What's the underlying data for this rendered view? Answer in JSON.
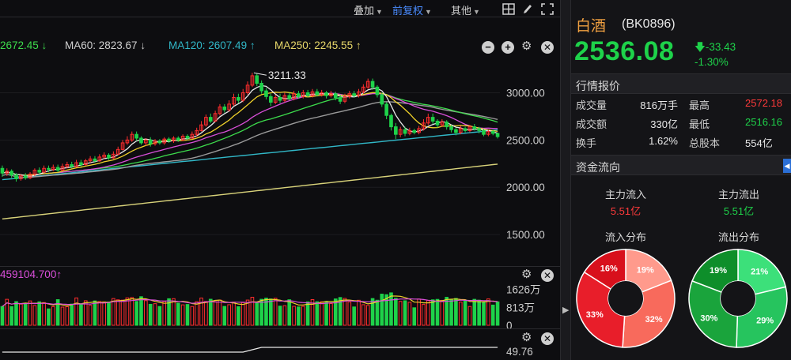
{
  "toolbar": {
    "overlay_label": "叠加",
    "adjust_label": "前复权",
    "other_label": "其他"
  },
  "ma_bar": {
    "ma_partial": "2672.45 ↓",
    "ma60": "MA60: 2823.67 ↓",
    "ma120": "MA120: 2607.49 ↑",
    "ma250": "MA250: 2245.55 ↑"
  },
  "colors": {
    "up": "#ff2d2d",
    "down": "#1ed24a",
    "ma5": "#e8e8e8",
    "ma10": "#f0d22a",
    "ma20": "#d94fd9",
    "ma30": "#3ddc4c",
    "ma60": "#9a9a9a",
    "ma120": "#31b8c8",
    "ma250": "#d8d27a",
    "accent_blue": "#2b6fd6"
  },
  "price_chart": {
    "y_ticks": [
      "3000.00",
      "2500.00",
      "2000.00",
      "1500.00"
    ],
    "y_tick_values": [
      3000,
      2500,
      2000,
      1500
    ],
    "y_range": [
      1200,
      3380
    ],
    "high_marker": "3211.33"
  },
  "volume_chart": {
    "header": "459104.700↑",
    "y_ticks": [
      "1626万",
      "813万",
      "0"
    ],
    "y_tick_values": [
      1626,
      813,
      0
    ],
    "y_max": 1930
  },
  "indicator_chart": {
    "tick": "49.76"
  },
  "chart_data": {
    "type": "candlestick",
    "candles": [
      {
        "o": 2200,
        "c": 2150,
        "h": 2230,
        "l": 2110
      },
      {
        "o": 2150,
        "c": 2170,
        "h": 2200,
        "l": 2120
      },
      {
        "o": 2170,
        "c": 2130,
        "h": 2190,
        "l": 2100
      },
      {
        "o": 2130,
        "c": 2090,
        "h": 2150,
        "l": 2060
      },
      {
        "o": 2090,
        "c": 2120,
        "h": 2140,
        "l": 2070
      },
      {
        "o": 2120,
        "c": 2100,
        "h": 2150,
        "l": 2080
      },
      {
        "o": 2100,
        "c": 2140,
        "h": 2160,
        "l": 2085
      },
      {
        "o": 2140,
        "c": 2180,
        "h": 2200,
        "l": 2120
      },
      {
        "o": 2180,
        "c": 2160,
        "h": 2210,
        "l": 2140
      },
      {
        "o": 2160,
        "c": 2200,
        "h": 2230,
        "l": 2150
      },
      {
        "o": 2200,
        "c": 2190,
        "h": 2230,
        "l": 2160
      },
      {
        "o": 2190,
        "c": 2210,
        "h": 2240,
        "l": 2170
      },
      {
        "o": 2210,
        "c": 2180,
        "h": 2240,
        "l": 2160
      },
      {
        "o": 2180,
        "c": 2220,
        "h": 2250,
        "l": 2170
      },
      {
        "o": 2220,
        "c": 2240,
        "h": 2270,
        "l": 2200
      },
      {
        "o": 2240,
        "c": 2220,
        "h": 2270,
        "l": 2200
      },
      {
        "o": 2220,
        "c": 2260,
        "h": 2290,
        "l": 2210
      },
      {
        "o": 2260,
        "c": 2240,
        "h": 2290,
        "l": 2220
      },
      {
        "o": 2240,
        "c": 2280,
        "h": 2300,
        "l": 2230
      },
      {
        "o": 2280,
        "c": 2300,
        "h": 2330,
        "l": 2260
      },
      {
        "o": 2300,
        "c": 2280,
        "h": 2330,
        "l": 2260
      },
      {
        "o": 2280,
        "c": 2320,
        "h": 2350,
        "l": 2270
      },
      {
        "o": 2320,
        "c": 2340,
        "h": 2370,
        "l": 2300
      },
      {
        "o": 2340,
        "c": 2310,
        "h": 2360,
        "l": 2290
      },
      {
        "o": 2310,
        "c": 2350,
        "h": 2380,
        "l": 2300
      },
      {
        "o": 2350,
        "c": 2400,
        "h": 2430,
        "l": 2340
      },
      {
        "o": 2400,
        "c": 2470,
        "h": 2500,
        "l": 2390
      },
      {
        "o": 2470,
        "c": 2500,
        "h": 2540,
        "l": 2450
      },
      {
        "o": 2500,
        "c": 2560,
        "h": 2590,
        "l": 2480
      },
      {
        "o": 2560,
        "c": 2520,
        "h": 2590,
        "l": 2490
      },
      {
        "o": 2520,
        "c": 2470,
        "h": 2540,
        "l": 2450
      },
      {
        "o": 2470,
        "c": 2500,
        "h": 2520,
        "l": 2440
      },
      {
        "o": 2500,
        "c": 2460,
        "h": 2530,
        "l": 2430
      },
      {
        "o": 2460,
        "c": 2490,
        "h": 2510,
        "l": 2440
      },
      {
        "o": 2490,
        "c": 2470,
        "h": 2510,
        "l": 2450
      },
      {
        "o": 2470,
        "c": 2510,
        "h": 2530,
        "l": 2450
      },
      {
        "o": 2510,
        "c": 2490,
        "h": 2530,
        "l": 2470
      },
      {
        "o": 2490,
        "c": 2520,
        "h": 2540,
        "l": 2470
      },
      {
        "o": 2520,
        "c": 2500,
        "h": 2540,
        "l": 2480
      },
      {
        "o": 2500,
        "c": 2540,
        "h": 2560,
        "l": 2490
      },
      {
        "o": 2540,
        "c": 2520,
        "h": 2560,
        "l": 2500
      },
      {
        "o": 2520,
        "c": 2560,
        "h": 2590,
        "l": 2510
      },
      {
        "o": 2560,
        "c": 2600,
        "h": 2630,
        "l": 2540
      },
      {
        "o": 2600,
        "c": 2660,
        "h": 2700,
        "l": 2590
      },
      {
        "o": 2660,
        "c": 2740,
        "h": 2770,
        "l": 2640
      },
      {
        "o": 2740,
        "c": 2700,
        "h": 2780,
        "l": 2680
      },
      {
        "o": 2700,
        "c": 2780,
        "h": 2810,
        "l": 2690
      },
      {
        "o": 2780,
        "c": 2850,
        "h": 2880,
        "l": 2760
      },
      {
        "o": 2850,
        "c": 2820,
        "h": 2880,
        "l": 2790
      },
      {
        "o": 2820,
        "c": 2880,
        "h": 2920,
        "l": 2800
      },
      {
        "o": 2880,
        "c": 2950,
        "h": 2990,
        "l": 2860
      },
      {
        "o": 2950,
        "c": 2920,
        "h": 2990,
        "l": 2890
      },
      {
        "o": 2920,
        "c": 3000,
        "h": 3040,
        "l": 2900
      },
      {
        "o": 3000,
        "c": 3080,
        "h": 3120,
        "l": 2980
      },
      {
        "o": 3080,
        "c": 3180,
        "h": 3211,
        "l": 3060
      },
      {
        "o": 3180,
        "c": 3100,
        "h": 3200,
        "l": 3070
      },
      {
        "o": 3100,
        "c": 3020,
        "h": 3130,
        "l": 2990
      },
      {
        "o": 3020,
        "c": 2960,
        "h": 3050,
        "l": 2930
      },
      {
        "o": 2960,
        "c": 2900,
        "h": 2990,
        "l": 2860
      },
      {
        "o": 2900,
        "c": 2950,
        "h": 2980,
        "l": 2880
      },
      {
        "o": 2950,
        "c": 2920,
        "h": 2990,
        "l": 2890
      },
      {
        "o": 2920,
        "c": 2970,
        "h": 3000,
        "l": 2900
      },
      {
        "o": 2970,
        "c": 2940,
        "h": 3000,
        "l": 2920
      },
      {
        "o": 2940,
        "c": 2990,
        "h": 3020,
        "l": 2920
      },
      {
        "o": 2990,
        "c": 2960,
        "h": 3020,
        "l": 2940
      },
      {
        "o": 2960,
        "c": 3000,
        "h": 3030,
        "l": 2940
      },
      {
        "o": 3000,
        "c": 2970,
        "h": 3030,
        "l": 2950
      },
      {
        "o": 2970,
        "c": 3010,
        "h": 3040,
        "l": 2950
      },
      {
        "o": 3010,
        "c": 2980,
        "h": 3040,
        "l": 2960
      },
      {
        "o": 2980,
        "c": 3000,
        "h": 3030,
        "l": 2960
      },
      {
        "o": 3000,
        "c": 2970,
        "h": 3020,
        "l": 2940
      },
      {
        "o": 2970,
        "c": 2990,
        "h": 3020,
        "l": 2950
      },
      {
        "o": 2990,
        "c": 2950,
        "h": 3010,
        "l": 2920
      },
      {
        "o": 2950,
        "c": 2910,
        "h": 2980,
        "l": 2880
      },
      {
        "o": 2910,
        "c": 2960,
        "h": 2990,
        "l": 2890
      },
      {
        "o": 2960,
        "c": 2990,
        "h": 3020,
        "l": 2940
      },
      {
        "o": 2990,
        "c": 2970,
        "h": 3020,
        "l": 2950
      },
      {
        "o": 2970,
        "c": 3010,
        "h": 3040,
        "l": 2950
      },
      {
        "o": 3010,
        "c": 3060,
        "h": 3090,
        "l": 2990
      },
      {
        "o": 3060,
        "c": 3120,
        "h": 3150,
        "l": 3040
      },
      {
        "o": 3120,
        "c": 3060,
        "h": 3150,
        "l": 3030
      },
      {
        "o": 3060,
        "c": 2980,
        "h": 3080,
        "l": 2950
      },
      {
        "o": 2980,
        "c": 2880,
        "h": 3000,
        "l": 2850
      },
      {
        "o": 2880,
        "c": 2760,
        "h": 2900,
        "l": 2720
      },
      {
        "o": 2760,
        "c": 2640,
        "h": 2780,
        "l": 2600
      },
      {
        "o": 2640,
        "c": 2560,
        "h": 2680,
        "l": 2510
      },
      {
        "o": 2560,
        "c": 2610,
        "h": 2640,
        "l": 2530
      },
      {
        "o": 2610,
        "c": 2570,
        "h": 2640,
        "l": 2540
      },
      {
        "o": 2570,
        "c": 2600,
        "h": 2630,
        "l": 2550
      },
      {
        "o": 2600,
        "c": 2580,
        "h": 2620,
        "l": 2560
      },
      {
        "o": 2580,
        "c": 2620,
        "h": 2650,
        "l": 2560
      },
      {
        "o": 2620,
        "c": 2680,
        "h": 2720,
        "l": 2600
      },
      {
        "o": 2680,
        "c": 2740,
        "h": 2780,
        "l": 2660
      },
      {
        "o": 2740,
        "c": 2700,
        "h": 2780,
        "l": 2670
      },
      {
        "o": 2700,
        "c": 2660,
        "h": 2720,
        "l": 2630
      },
      {
        "o": 2660,
        "c": 2690,
        "h": 2720,
        "l": 2640
      },
      {
        "o": 2690,
        "c": 2640,
        "h": 2710,
        "l": 2610
      },
      {
        "o": 2640,
        "c": 2610,
        "h": 2660,
        "l": 2580
      },
      {
        "o": 2610,
        "c": 2580,
        "h": 2630,
        "l": 2550
      },
      {
        "o": 2580,
        "c": 2620,
        "h": 2650,
        "l": 2560
      },
      {
        "o": 2620,
        "c": 2600,
        "h": 2640,
        "l": 2580
      },
      {
        "o": 2600,
        "c": 2640,
        "h": 2660,
        "l": 2580
      },
      {
        "o": 2640,
        "c": 2620,
        "h": 2670,
        "l": 2600
      },
      {
        "o": 2620,
        "c": 2600,
        "h": 2640,
        "l": 2570
      },
      {
        "o": 2600,
        "c": 2560,
        "h": 2620,
        "l": 2540
      },
      {
        "o": 2560,
        "c": 2590,
        "h": 2610,
        "l": 2540
      },
      {
        "o": 2590,
        "c": 2570,
        "h": 2610,
        "l": 2550
      },
      {
        "o": 2570,
        "c": 2536,
        "h": 2572,
        "l": 2516
      }
    ],
    "ma_lines": {
      "ma250": [
        1665,
        2245
      ],
      "ma120": [
        2080,
        2607
      ],
      "ma60": [
        2130,
        2824
      ]
    }
  },
  "info": {
    "name": "白酒",
    "code": "(BK0896)",
    "price": "2536.08",
    "change_abs": "-33.43",
    "change_pct": "-1.30%",
    "quote_header": "行情报价",
    "rows": [
      {
        "k1": "成交量",
        "v1": "816万手",
        "k2": "最高",
        "v2": "2572.18",
        "v2_color": "#ff3a3a"
      },
      {
        "k1": "成交额",
        "v1": "330亿",
        "k2": "最低",
        "v2": "2516.16",
        "v2_color": "#1ed24a"
      },
      {
        "k1": "换手",
        "v1": "1.62%",
        "k2": "总股本",
        "v2": "554亿",
        "v2_color": "#e8e8e8"
      }
    ],
    "flow_header": "资金流向",
    "main_in_label": "主力流入",
    "main_in_value": "5.51亿",
    "main_out_label": "主力流出",
    "main_out_value": "5.51亿",
    "in_dist_label": "流入分布",
    "out_dist_label": "流出分布",
    "in_dist": [
      {
        "label": "19%",
        "value": 19,
        "color": "#ff9a8c"
      },
      {
        "label": "32%",
        "value": 32,
        "color": "#f86a5c"
      },
      {
        "label": "33%",
        "value": 33,
        "color": "#e81e2a"
      },
      {
        "label": "16%",
        "value": 16,
        "color": "#d8101c"
      }
    ],
    "out_dist": [
      {
        "label": "21%",
        "value": 21,
        "color": "#3ce07a"
      },
      {
        "label": "29%",
        "value": 29,
        "color": "#26c45e"
      },
      {
        "label": "30%",
        "value": 30,
        "color": "#1aa43c"
      },
      {
        "label": "19%",
        "value": 19,
        "color": "#0e8e2a"
      }
    ]
  }
}
